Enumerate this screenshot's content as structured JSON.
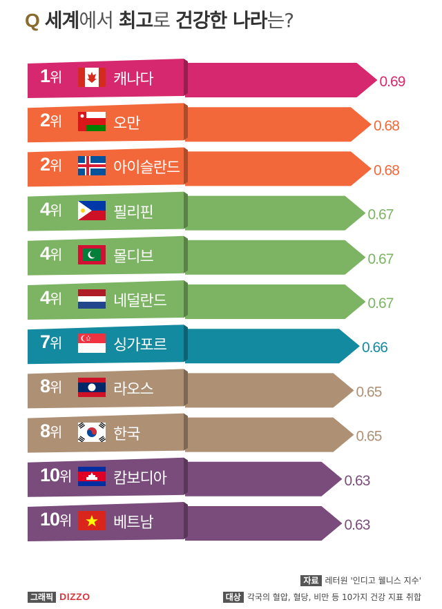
{
  "title": {
    "q": "Q",
    "p1": "세계",
    "p2": "에서 ",
    "p3": "최고",
    "p4": "로 ",
    "p5": "건강한 나라",
    "p6": "는?"
  },
  "chart_data": {
    "type": "bar",
    "title": "세계에서 최고로 건강한 나라는?",
    "rank_suffix": "위",
    "categories": [
      "캐나다",
      "오만",
      "아이슬란드",
      "필리핀",
      "몰디브",
      "네덜란드",
      "싱가포르",
      "라오스",
      "한국",
      "캄보디아",
      "베트남"
    ],
    "ranks": [
      "1",
      "2",
      "2",
      "4",
      "4",
      "4",
      "7",
      "8",
      "8",
      "10",
      "10"
    ],
    "values": [
      0.69,
      0.68,
      0.68,
      0.67,
      0.67,
      0.67,
      0.66,
      0.65,
      0.65,
      0.63,
      0.63
    ],
    "value_labels": [
      "0.69",
      "0.68",
      "0.68",
      "0.67",
      "0.67",
      "0.67",
      "0.66",
      "0.65",
      "0.65",
      "0.63",
      "0.63"
    ],
    "flags": [
      "canada-flag",
      "oman-flag",
      "iceland-flag",
      "philippines-flag",
      "maldives-flag",
      "netherlands-flag",
      "singapore-flag",
      "laos-flag",
      "korea-flag",
      "cambodia-flag",
      "vietnam-flag"
    ],
    "colors": [
      "#d6286f",
      "#f2683a",
      "#f2683a",
      "#7cb463",
      "#7cb463",
      "#7cb463",
      "#138a9f",
      "#ae9074",
      "#ae9074",
      "#7a4c7b",
      "#7a4c7b"
    ]
  },
  "source": {
    "label": "자료",
    "text": "레터원 '인디고 웰니스 지수'"
  },
  "target": {
    "label": "대상",
    "text": "각국의 혈압, 혈당, 비만 등 10가지 건강 지표 취합"
  },
  "credit": {
    "label": "그래픽",
    "brand": "DIZZO"
  }
}
